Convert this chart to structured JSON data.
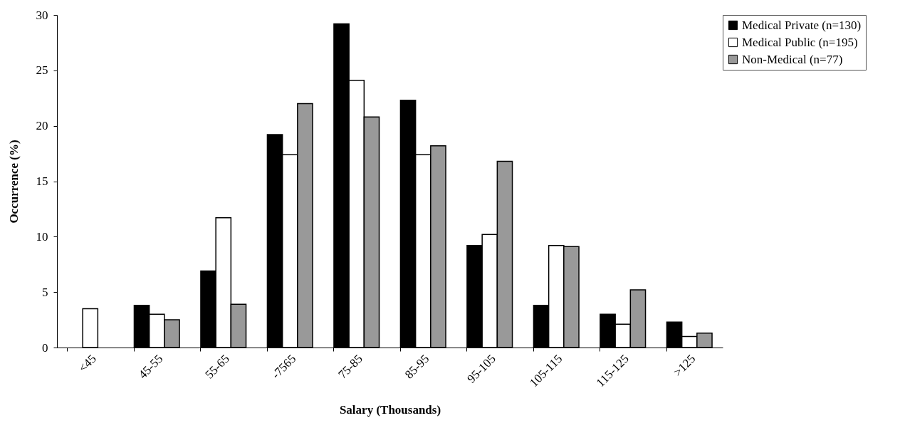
{
  "chart_data": {
    "type": "bar",
    "xlabel": "Salary (Thousands)",
    "ylabel": "Occurrence (%)",
    "categories": [
      "<45",
      "45-55",
      "55-65",
      "-7565",
      "75-85",
      "85-95",
      "95-105",
      "105-115",
      "115-125",
      ">125"
    ],
    "series": [
      {
        "name": "Medical Private (n=130)",
        "color": "#000000",
        "values": [
          null,
          3.8,
          6.9,
          19.2,
          29.2,
          22.3,
          9.2,
          3.8,
          3.0,
          2.3
        ]
      },
      {
        "name": "Medical Public  (n=195)",
        "color": "#ffffff",
        "values": [
          3.5,
          3.0,
          11.7,
          17.4,
          24.1,
          17.4,
          10.2,
          9.2,
          2.1,
          1.0
        ]
      },
      {
        "name": "Non-Medical  (n=77)",
        "color": "#999999",
        "values": [
          null,
          2.5,
          3.9,
          22.0,
          20.8,
          18.2,
          16.8,
          9.1,
          5.2,
          1.3
        ]
      }
    ],
    "ylim": [
      0,
      30
    ],
    "yticks": [
      0,
      5,
      10,
      15,
      20,
      25,
      30
    ],
    "grid": false,
    "legend": "right"
  }
}
